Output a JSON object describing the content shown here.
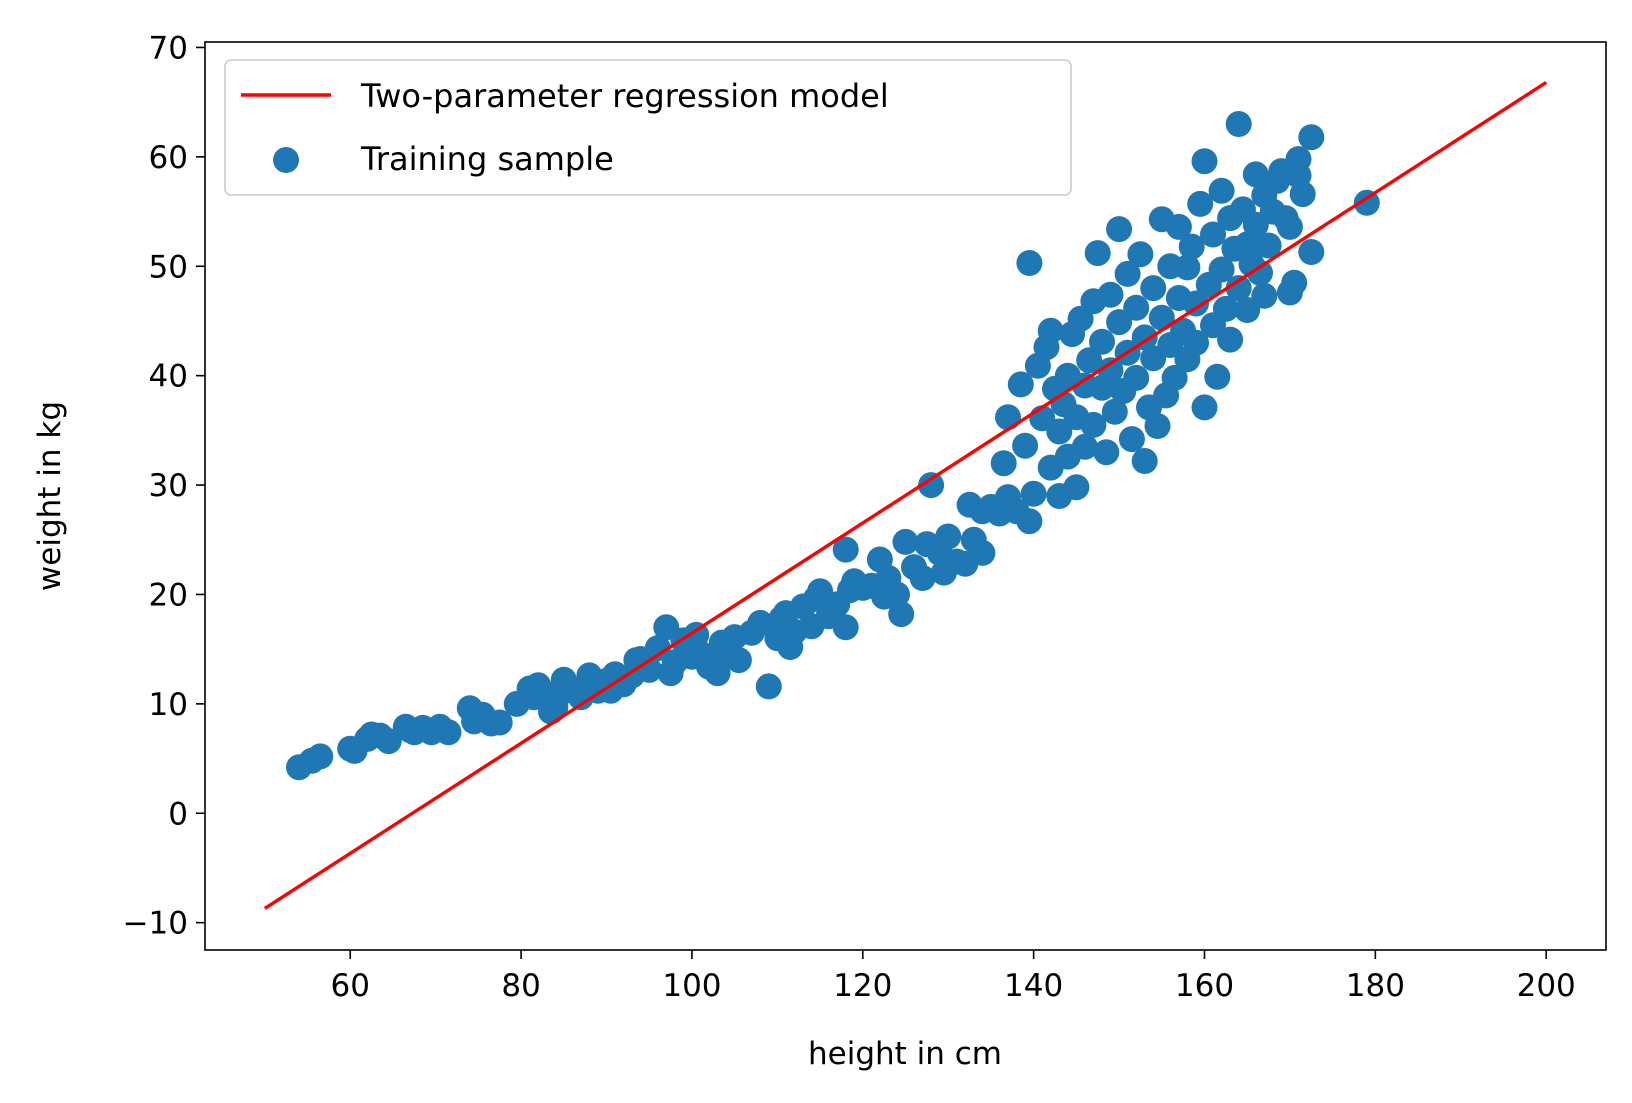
{
  "chart_data": {
    "type": "scatter",
    "title": "",
    "xlabel": "height in cm",
    "ylabel": "weight in kg",
    "xlim": [
      43,
      207
    ],
    "ylim": [
      -12.5,
      70.5
    ],
    "xticks": [
      60,
      80,
      100,
      120,
      140,
      160,
      180,
      200
    ],
    "yticks": [
      -10,
      0,
      10,
      20,
      30,
      40,
      50,
      60,
      70
    ],
    "xtick_labels": [
      "60",
      "80",
      "100",
      "120",
      "140",
      "160",
      "180",
      "200"
    ],
    "ytick_labels": [
      "−10",
      "0",
      "10",
      "20",
      "30",
      "40",
      "50",
      "60",
      "70"
    ],
    "grid": false,
    "legend_position": "upper-left",
    "series": [
      {
        "name": "Two-parameter regression model",
        "kind": "line",
        "color": "#ff0000",
        "x": [
          50,
          200
        ],
        "y": [
          -8.7,
          66.8
        ]
      },
      {
        "name": "Training sample",
        "kind": "scatter",
        "color": "#1f77b4",
        "points": [
          [
            54,
            4.2
          ],
          [
            55.5,
            4.8
          ],
          [
            56.5,
            5.2
          ],
          [
            60,
            5.9
          ],
          [
            60.5,
            5.7
          ],
          [
            62,
            6.8
          ],
          [
            62.5,
            7.2
          ],
          [
            63.5,
            7.1
          ],
          [
            64.5,
            6.6
          ],
          [
            66.5,
            7.9
          ],
          [
            67,
            7.6
          ],
          [
            67.5,
            7.4
          ],
          [
            68.5,
            7.8
          ],
          [
            69.5,
            7.4
          ],
          [
            70.5,
            7.9
          ],
          [
            71.5,
            7.4
          ],
          [
            74,
            9.6
          ],
          [
            74.5,
            8.4
          ],
          [
            75.5,
            9.0
          ],
          [
            76.5,
            8.2
          ],
          [
            77.5,
            8.3
          ],
          [
            79.5,
            10.0
          ],
          [
            81,
            11.4
          ],
          [
            81.5,
            10.6
          ],
          [
            82,
            11.7
          ],
          [
            83,
            10.9
          ],
          [
            83.5,
            9.3
          ],
          [
            84,
            9.7
          ],
          [
            84.5,
            10.9
          ],
          [
            85,
            12.2
          ],
          [
            86,
            11.3
          ],
          [
            87,
            10.6
          ],
          [
            87.5,
            11.6
          ],
          [
            88,
            12.6
          ],
          [
            89,
            11.2
          ],
          [
            90,
            12.1
          ],
          [
            90.5,
            11.2
          ],
          [
            91,
            12.7
          ],
          [
            92,
            11.8
          ],
          [
            93,
            12.6
          ],
          [
            93.5,
            14.0
          ],
          [
            94,
            14.1
          ],
          [
            95,
            13.1
          ],
          [
            96,
            15.1
          ],
          [
            97,
            17.0
          ],
          [
            97.5,
            12.8
          ],
          [
            98,
            13.8
          ],
          [
            99,
            15.8
          ],
          [
            100,
            14.3
          ],
          [
            100.5,
            16.3
          ],
          [
            101,
            14.6
          ],
          [
            102,
            13.4
          ],
          [
            103,
            12.8
          ],
          [
            103.5,
            15.6
          ],
          [
            104,
            14.4
          ],
          [
            105,
            16.1
          ],
          [
            105.5,
            14.0
          ],
          [
            107,
            16.5
          ],
          [
            108,
            17.4
          ],
          [
            109,
            11.6
          ],
          [
            110,
            16.0
          ],
          [
            110.5,
            17.8
          ],
          [
            111,
            18.3
          ],
          [
            111.5,
            15.2
          ],
          [
            112,
            16.6
          ],
          [
            113,
            18.9
          ],
          [
            114,
            17.1
          ],
          [
            114.5,
            19.6
          ],
          [
            115,
            20.3
          ],
          [
            116,
            18.0
          ],
          [
            117,
            19.1
          ],
          [
            118,
            24.1
          ],
          [
            118,
            17.0
          ],
          [
            118.5,
            20.4
          ],
          [
            119,
            21.2
          ],
          [
            120,
            20.6
          ],
          [
            121,
            20.8
          ],
          [
            122,
            23.2
          ],
          [
            122.5,
            19.8
          ],
          [
            123,
            21.5
          ],
          [
            124,
            20.0
          ],
          [
            124.5,
            18.2
          ],
          [
            125,
            24.8
          ],
          [
            126,
            22.5
          ],
          [
            127,
            21.5
          ],
          [
            127.5,
            24.6
          ],
          [
            128,
            30.0
          ],
          [
            129,
            23.8
          ],
          [
            129.5,
            22.0
          ],
          [
            130,
            25.3
          ],
          [
            131,
            23.0
          ],
          [
            132,
            22.8
          ],
          [
            132.5,
            28.2
          ],
          [
            133,
            25.0
          ],
          [
            134,
            27.6
          ],
          [
            134,
            23.8
          ],
          [
            135,
            28.0
          ],
          [
            136,
            27.4
          ],
          [
            136.5,
            32.0
          ],
          [
            137,
            28.9
          ],
          [
            137,
            36.2
          ],
          [
            138,
            27.6
          ],
          [
            138.5,
            39.2
          ],
          [
            139,
            33.6
          ],
          [
            139.5,
            26.7
          ],
          [
            139.5,
            50.3
          ],
          [
            140,
            29.2
          ],
          [
            140.5,
            40.9
          ],
          [
            141,
            36.1
          ],
          [
            141.5,
            42.6
          ],
          [
            142,
            44.1
          ],
          [
            142,
            31.6
          ],
          [
            142.5,
            38.8
          ],
          [
            143,
            34.9
          ],
          [
            143,
            29.0
          ],
          [
            143.5,
            37.4
          ],
          [
            144,
            40.0
          ],
          [
            144,
            32.6
          ],
          [
            144.5,
            43.8
          ],
          [
            145,
            36.2
          ],
          [
            145,
            29.8
          ],
          [
            145.5,
            45.2
          ],
          [
            146,
            39.1
          ],
          [
            146,
            33.5
          ],
          [
            146.5,
            41.4
          ],
          [
            147,
            46.8
          ],
          [
            147,
            35.5
          ],
          [
            147.5,
            51.2
          ],
          [
            148,
            38.9
          ],
          [
            148,
            43.1
          ],
          [
            148.5,
            33.0
          ],
          [
            149,
            47.4
          ],
          [
            149,
            40.5
          ],
          [
            149.5,
            36.7
          ],
          [
            150,
            53.4
          ],
          [
            150,
            44.9
          ],
          [
            150.5,
            38.6
          ],
          [
            151,
            49.3
          ],
          [
            151,
            42.1
          ],
          [
            151.5,
            34.2
          ],
          [
            152,
            46.2
          ],
          [
            152,
            39.8
          ],
          [
            152.5,
            51.1
          ],
          [
            153,
            43.5
          ],
          [
            153,
            32.2
          ],
          [
            153.5,
            37.1
          ],
          [
            154,
            48.0
          ],
          [
            154,
            41.6
          ],
          [
            154.5,
            35.4
          ],
          [
            155,
            54.3
          ],
          [
            155,
            45.3
          ],
          [
            155.5,
            38.2
          ],
          [
            156,
            50.0
          ],
          [
            156,
            42.8
          ],
          [
            156.5,
            39.8
          ],
          [
            157,
            47.1
          ],
          [
            157,
            53.6
          ],
          [
            157.5,
            44.1
          ],
          [
            158,
            49.9
          ],
          [
            158,
            41.5
          ],
          [
            158.5,
            51.8
          ],
          [
            159,
            46.6
          ],
          [
            159,
            43.0
          ],
          [
            159.5,
            55.7
          ],
          [
            160,
            59.6
          ],
          [
            160,
            37.1
          ],
          [
            160.5,
            48.3
          ],
          [
            161,
            52.9
          ],
          [
            161,
            44.6
          ],
          [
            161.5,
            39.9
          ],
          [
            162,
            56.9
          ],
          [
            162,
            49.7
          ],
          [
            162.5,
            46.1
          ],
          [
            163,
            54.4
          ],
          [
            163,
            43.3
          ],
          [
            163.5,
            51.6
          ],
          [
            164,
            63.0
          ],
          [
            164,
            48.0
          ],
          [
            164.5,
            55.2
          ],
          [
            165,
            46.0
          ],
          [
            165,
            52.0
          ],
          [
            165.5,
            50.2
          ],
          [
            166,
            58.4
          ],
          [
            166,
            53.8
          ],
          [
            166.5,
            49.4
          ],
          [
            167,
            56.5
          ],
          [
            167,
            47.3
          ],
          [
            167.5,
            51.9
          ],
          [
            168,
            55.0
          ],
          [
            168.5,
            57.8
          ],
          [
            169,
            58.7
          ],
          [
            169.5,
            54.4
          ],
          [
            170,
            53.6
          ],
          [
            170,
            47.6
          ],
          [
            170.5,
            48.5
          ],
          [
            171,
            59.8
          ],
          [
            171,
            58.3
          ],
          [
            171.5,
            56.6
          ],
          [
            172.5,
            61.8
          ],
          [
            172.5,
            51.3
          ],
          [
            179,
            55.8
          ]
        ]
      }
    ]
  }
}
